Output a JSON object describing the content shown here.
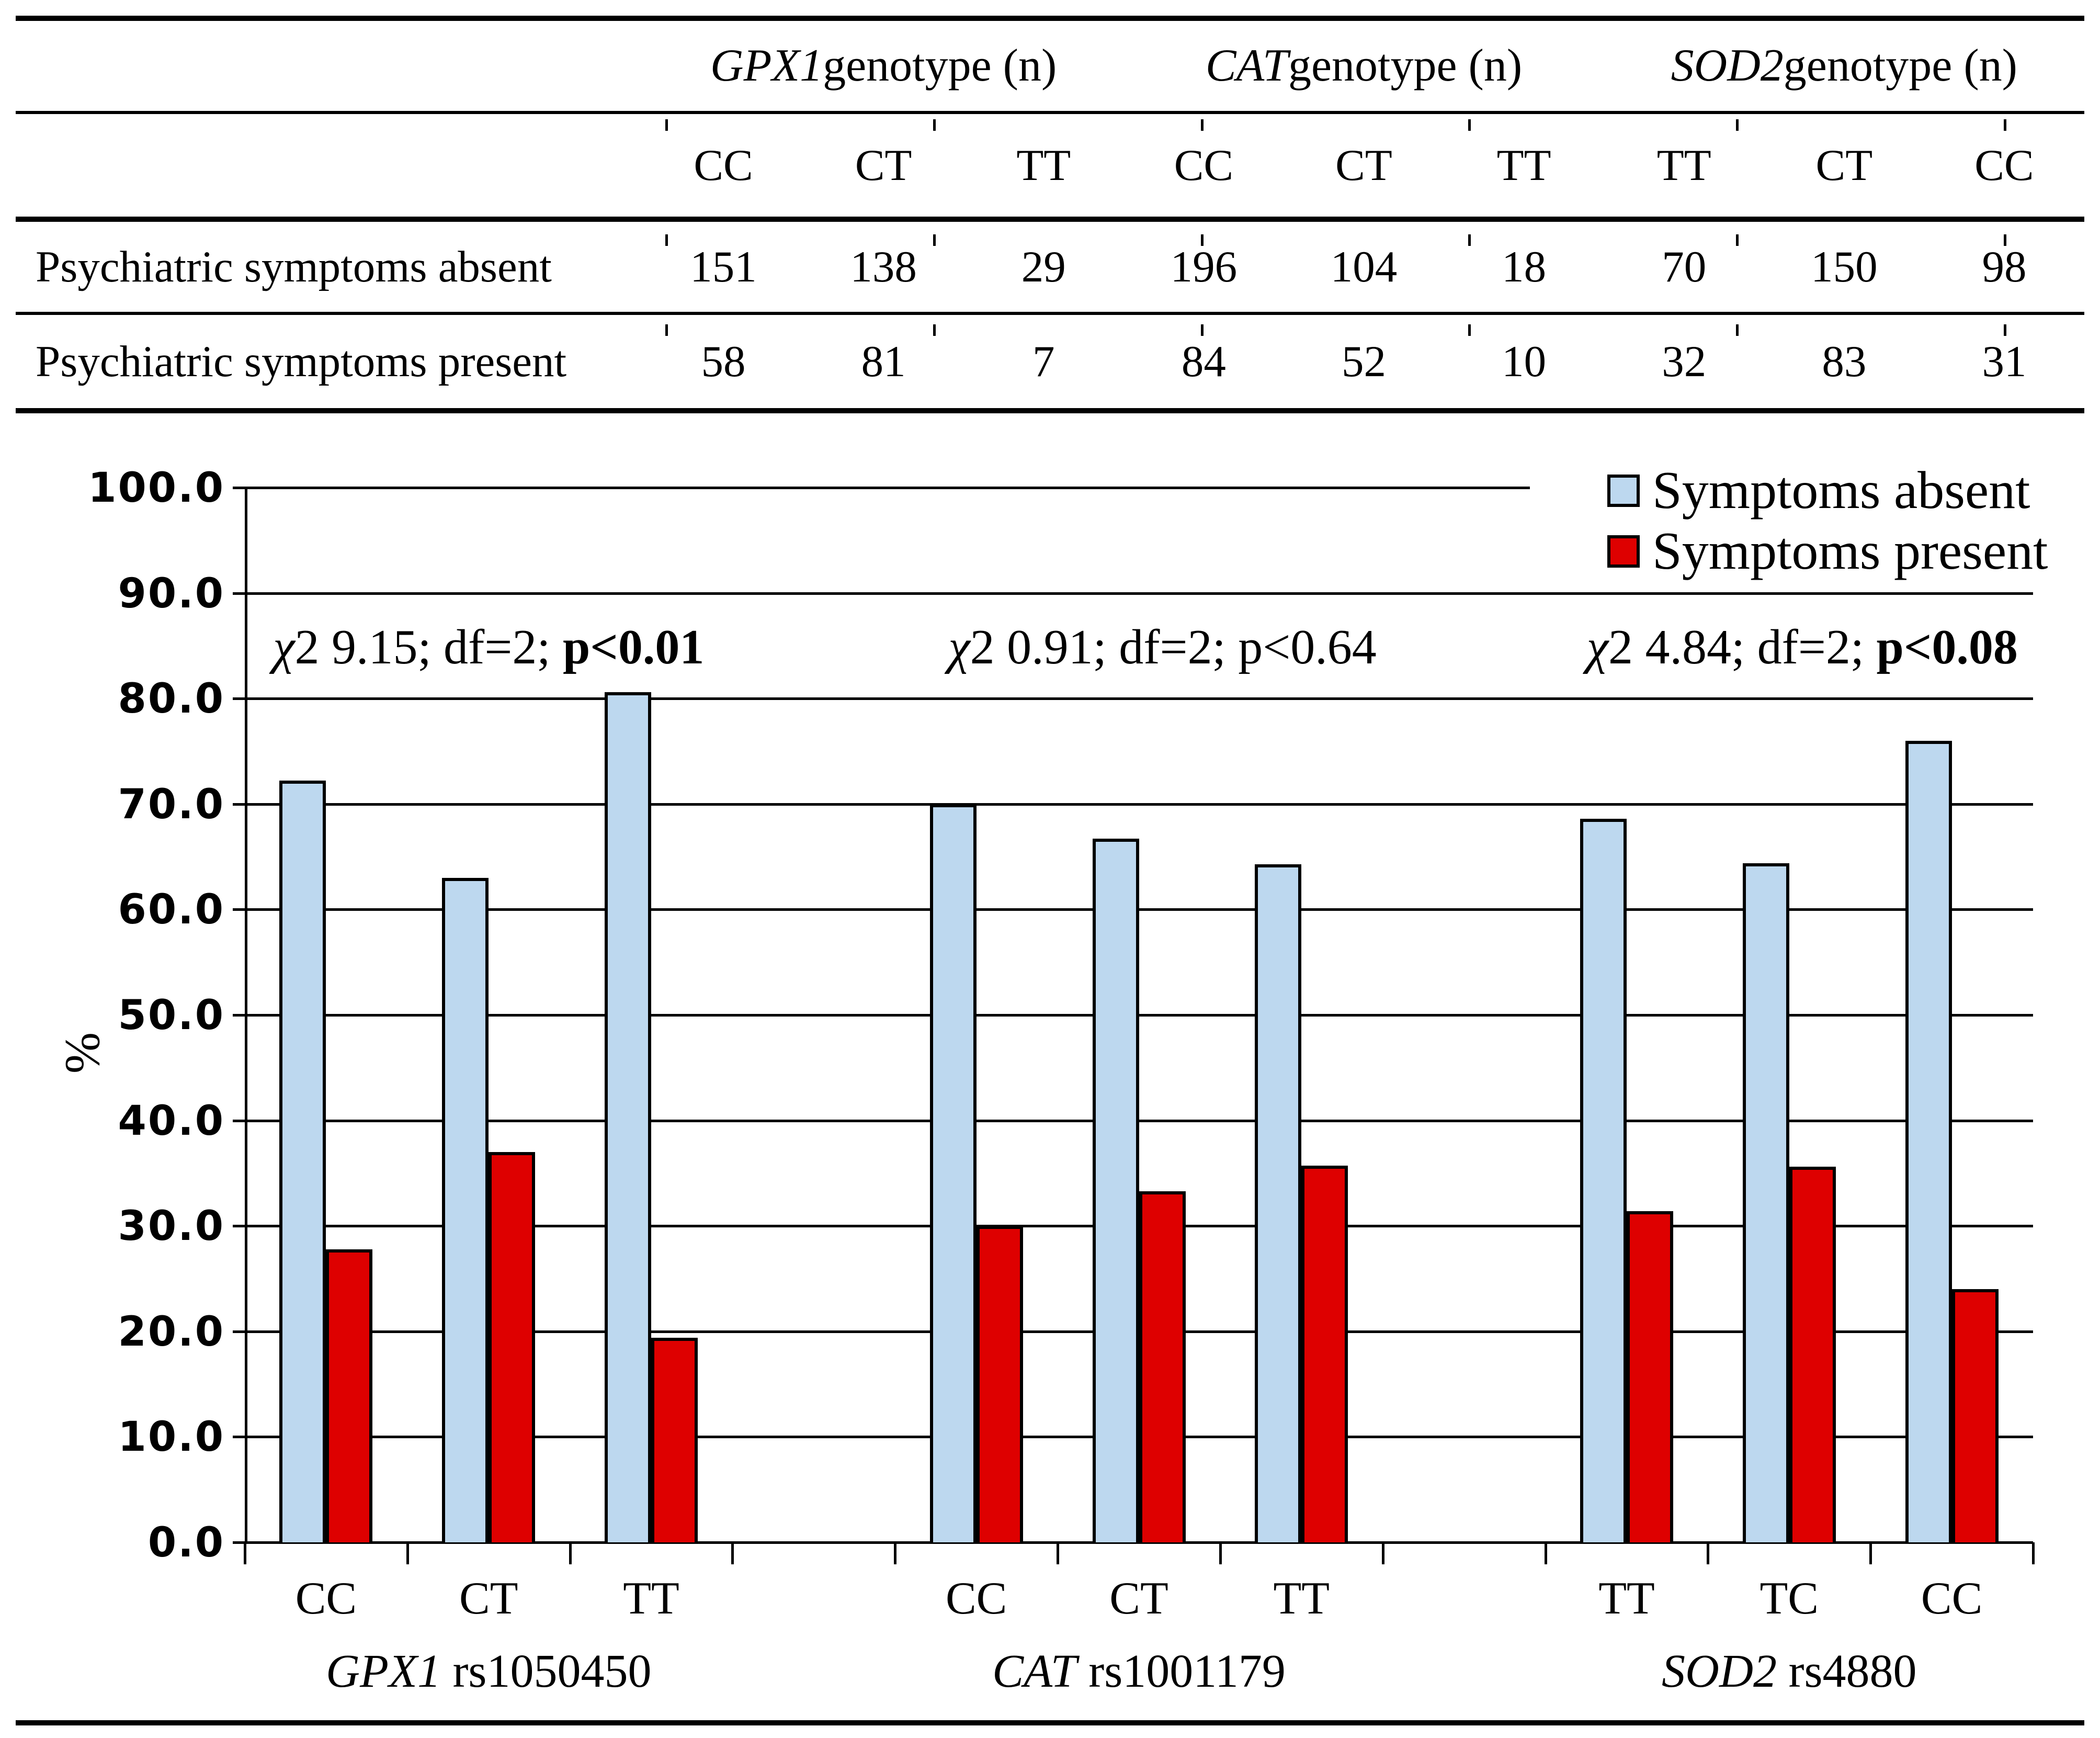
{
  "figure": {
    "table": {
      "groups": [
        {
          "gene": "GPX1",
          "suffix": " genotype (n)"
        },
        {
          "gene": "CAT",
          "suffix": " genotype (n)"
        },
        {
          "gene": "SOD2",
          "suffix": " genotype (n)"
        }
      ],
      "genotype_columns": [
        "CC",
        "CT",
        "TT",
        "CC",
        "CT",
        "TT",
        "TT",
        "CT",
        "CC"
      ],
      "rows": [
        {
          "label": "Psychiatric symptoms absent",
          "values": [
            "151",
            "138",
            "29",
            "196",
            "104",
            "18",
            "70",
            "150",
            "98"
          ]
        },
        {
          "label": "Psychiatric symptoms present",
          "values": [
            "58",
            "81",
            "7",
            "84",
            "52",
            "10",
            "32",
            "83",
            "31"
          ]
        }
      ]
    },
    "chart_data": {
      "type": "bar",
      "ylabel": "%",
      "ylim": [
        0,
        100
      ],
      "ytick_labels": [
        "100.0",
        "90.0",
        "80.0",
        "70.0",
        "60.0",
        "50.0",
        "40.0",
        "30.0",
        "20.0",
        "10.0",
        "0.0"
      ],
      "grid": "horizontal",
      "legend_position": "top-right",
      "series_colors": {
        "absent": "#BDD8EF",
        "present": "#DE0000"
      },
      "legend": [
        {
          "label": "Symptoms absent",
          "series": "absent"
        },
        {
          "label": "Symptoms present",
          "series": "present"
        }
      ],
      "groups": [
        {
          "gene": "GPX1",
          "rs": " rs1050450",
          "annotation_prefix": "χ2 9.15; df=2; ",
          "annotation_p": "p<0.01",
          "p_bold": true,
          "categories": [
            "CC",
            "CT",
            "TT"
          ],
          "series": [
            {
              "name": "Symptoms absent",
              "values": [
                72.2,
                63.0,
                80.6
              ]
            },
            {
              "name": "Symptoms present",
              "values": [
                27.8,
                37.0,
                19.4
              ]
            }
          ]
        },
        {
          "gene": "CAT",
          "rs": " rs1001179",
          "annotation_prefix": "χ2 0.91; df=2; ",
          "annotation_p": "p<0.64",
          "p_bold": false,
          "categories": [
            "CC",
            "CT",
            "TT"
          ],
          "series": [
            {
              "name": "Symptoms absent",
              "values": [
                70.0,
                66.7,
                64.3
              ]
            },
            {
              "name": "Symptoms present",
              "values": [
                30.0,
                33.3,
                35.7
              ]
            }
          ]
        },
        {
          "gene": "SOD2",
          "rs": " rs4880",
          "annotation_prefix": "χ2 4.84; df=2; ",
          "annotation_p": "p<0.08",
          "p_bold": true,
          "categories": [
            "TT",
            "TC",
            "CC"
          ],
          "series": [
            {
              "name": "Symptoms absent",
              "values": [
                68.6,
                64.4,
                76.0
              ]
            },
            {
              "name": "Symptoms present",
              "values": [
                31.4,
                35.6,
                24.0
              ]
            }
          ]
        }
      ]
    }
  }
}
